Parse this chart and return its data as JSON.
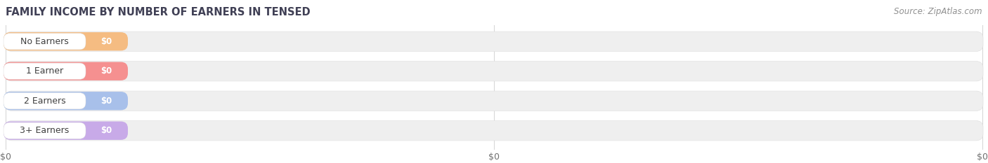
{
  "title": "FAMILY INCOME BY NUMBER OF EARNERS IN TENSED",
  "source_text": "Source: ZipAtlas.com",
  "categories": [
    "No Earners",
    "1 Earner",
    "2 Earners",
    "3+ Earners"
  ],
  "values": [
    0,
    0,
    0,
    0
  ],
  "bar_colors": [
    "#f5bc82",
    "#f59090",
    "#a8c0ea",
    "#c8aae8"
  ],
  "bar_bg_color": "#efefef",
  "bar_border_color": "#e2e2e2",
  "background_color": "#ffffff",
  "title_color": "#404055",
  "source_color": "#909090",
  "tick_label_color": "#707070",
  "title_fontsize": 10.5,
  "source_fontsize": 8.5,
  "label_fontsize": 9,
  "value_fontsize": 8.5,
  "tick_fontsize": 9
}
